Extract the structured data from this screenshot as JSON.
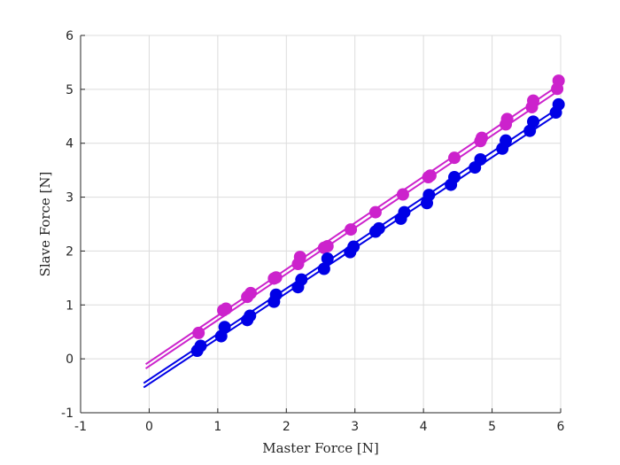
{
  "chart_data": {
    "type": "scatter",
    "title": "",
    "xlabel": "Master Force [N]",
    "ylabel": "Slave Force [N]",
    "xlim": [
      -1,
      6
    ],
    "ylim": [
      -1,
      6
    ],
    "xticks": [
      "-1",
      "0",
      "1",
      "2",
      "3",
      "4",
      "5",
      "6"
    ],
    "yticks": [
      "-1",
      "0",
      "1",
      "2",
      "3",
      "4",
      "5",
      "6"
    ],
    "grid": true,
    "legend": "none",
    "series": [
      {
        "color": "#cc22cc",
        "points": [
          [
            0.72,
            0.48
          ],
          [
            1.08,
            0.9
          ],
          [
            1.12,
            0.93
          ],
          [
            1.43,
            1.15
          ],
          [
            1.48,
            1.22
          ],
          [
            1.82,
            1.49
          ],
          [
            1.85,
            1.51
          ],
          [
            2.17,
            1.76
          ],
          [
            2.2,
            1.89
          ],
          [
            2.55,
            2.06
          ],
          [
            2.6,
            2.09
          ],
          [
            2.94,
            2.4
          ],
          [
            3.3,
            2.72
          ],
          [
            3.7,
            3.05
          ],
          [
            4.07,
            3.37
          ],
          [
            4.1,
            3.4
          ],
          [
            4.45,
            3.73
          ],
          [
            4.83,
            4.04
          ],
          [
            4.85,
            4.1
          ],
          [
            5.2,
            4.35
          ],
          [
            5.22,
            4.45
          ],
          [
            5.58,
            4.67
          ],
          [
            5.6,
            4.79
          ],
          [
            5.95,
            5.01
          ],
          [
            5.97,
            5.16
          ]
        ],
        "fits": [
          {
            "x": [
              -0.05,
              6.0
            ],
            "y": [
              -0.1,
              5.1
            ]
          },
          {
            "x": [
              -0.05,
              6.0
            ],
            "y": [
              -0.18,
              5.0
            ]
          }
        ]
      },
      {
        "color": "#0000e6",
        "points": [
          [
            0.7,
            0.15
          ],
          [
            0.75,
            0.24
          ],
          [
            1.05,
            0.42
          ],
          [
            1.1,
            0.59
          ],
          [
            1.43,
            0.72
          ],
          [
            1.47,
            0.8
          ],
          [
            1.82,
            1.06
          ],
          [
            1.85,
            1.19
          ],
          [
            2.17,
            1.33
          ],
          [
            2.22,
            1.47
          ],
          [
            2.55,
            1.67
          ],
          [
            2.6,
            1.86
          ],
          [
            2.93,
            1.98
          ],
          [
            2.98,
            2.08
          ],
          [
            3.3,
            2.36
          ],
          [
            3.35,
            2.42
          ],
          [
            3.67,
            2.6
          ],
          [
            3.72,
            2.72
          ],
          [
            4.05,
            2.89
          ],
          [
            4.08,
            3.04
          ],
          [
            4.4,
            3.23
          ],
          [
            4.45,
            3.37
          ],
          [
            4.75,
            3.55
          ],
          [
            4.83,
            3.7
          ],
          [
            5.15,
            3.9
          ],
          [
            5.2,
            4.05
          ],
          [
            5.55,
            4.23
          ],
          [
            5.6,
            4.4
          ],
          [
            5.93,
            4.57
          ],
          [
            5.97,
            4.72
          ]
        ],
        "fits": [
          {
            "x": [
              -0.08,
              6.0
            ],
            "y": [
              -0.45,
              4.68
            ]
          },
          {
            "x": [
              -0.08,
              6.0
            ],
            "y": [
              -0.53,
              4.58
            ]
          }
        ]
      }
    ]
  }
}
